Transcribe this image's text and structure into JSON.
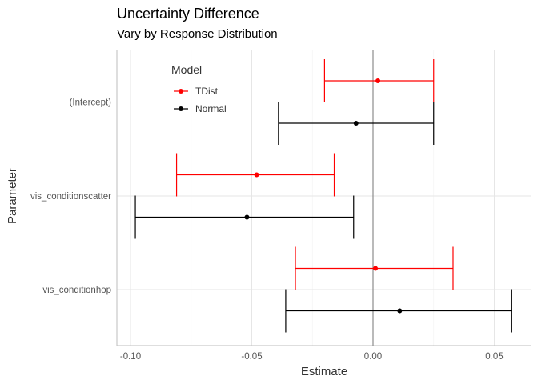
{
  "chart_data": {
    "type": "errorbar",
    "title": "Uncertainty Difference",
    "subtitle": "Vary by Response Distribution",
    "xlabel": "Estimate",
    "ylabel": "Parameter",
    "xlim": [
      -0.105,
      0.06
    ],
    "x_ticks": [
      -0.1,
      -0.05,
      0.0,
      0.05
    ],
    "x_tick_labels": [
      "-0.10",
      "-0.05",
      "0.00",
      "0.05"
    ],
    "categories": [
      "(Intercept)",
      "vis_conditionscatter",
      "vis_conditionhop"
    ],
    "reference_line_x": 0,
    "legend": {
      "title": "Model",
      "position": "top-left"
    },
    "grid": true,
    "series": [
      {
        "name": "TDist",
        "color": "#ff0000",
        "points": [
          {
            "category": "(Intercept)",
            "estimate": 0.002,
            "lower": -0.02,
            "upper": 0.025
          },
          {
            "category": "vis_conditionscatter",
            "estimate": -0.048,
            "lower": -0.081,
            "upper": -0.016
          },
          {
            "category": "vis_conditionhop",
            "estimate": 0.001,
            "lower": -0.032,
            "upper": 0.033
          }
        ]
      },
      {
        "name": "Normal",
        "color": "#000000",
        "points": [
          {
            "category": "(Intercept)",
            "estimate": -0.007,
            "lower": -0.039,
            "upper": 0.025
          },
          {
            "category": "vis_conditionscatter",
            "estimate": -0.052,
            "lower": -0.098,
            "upper": -0.008
          },
          {
            "category": "vis_conditionhop",
            "estimate": 0.011,
            "lower": -0.036,
            "upper": 0.057
          }
        ]
      }
    ]
  }
}
